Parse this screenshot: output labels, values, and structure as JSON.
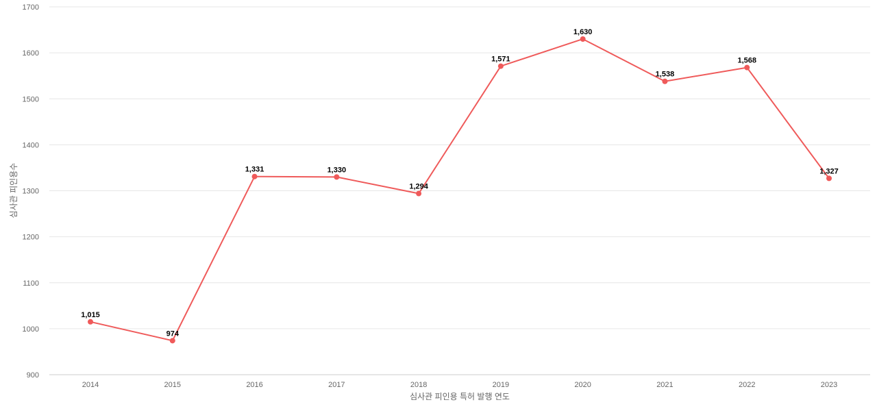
{
  "chart_data": {
    "type": "line",
    "title": "",
    "xlabel": "심사관 피인용 특허 발행 연도",
    "ylabel": "심사관 피인용수",
    "x": [
      "2014",
      "2015",
      "2016",
      "2017",
      "2018",
      "2019",
      "2020",
      "2021",
      "2022",
      "2023"
    ],
    "series": [
      {
        "values": [
          1015,
          974,
          1331,
          1330,
          1294,
          1571,
          1630,
          1538,
          1568,
          1327
        ],
        "labels": [
          "1,015",
          "974",
          "1,331",
          "1,330",
          "1,294",
          "1,571",
          "1,630",
          "1,538",
          "1,568",
          "1,327"
        ],
        "color": "#ef5a5a"
      }
    ],
    "ylim": [
      900,
      1700
    ],
    "yticks": [
      "900",
      "1000",
      "1100",
      "1200",
      "1300",
      "1400",
      "1500",
      "1600",
      "1700"
    ],
    "grid": true,
    "legend": "none"
  }
}
